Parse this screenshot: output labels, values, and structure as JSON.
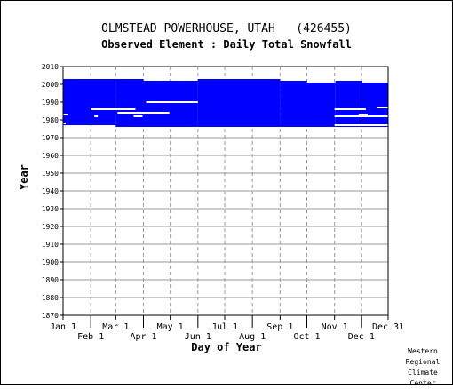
{
  "chart_data": {
    "type": "scatter",
    "title": "OLMSTEAD POWERHOUSE, UTAH   (426455)",
    "subtitle": "Observed Element : Daily Total Snowfall",
    "xlabel": "Day of Year",
    "ylabel": "Year",
    "ylim": [
      1870,
      2010
    ],
    "yticks": [
      2010,
      2000,
      1990,
      1980,
      1970,
      1960,
      1950,
      1940,
      1930,
      1920,
      1910,
      1900,
      1890,
      1880,
      1870
    ],
    "xticks_upper": [
      "Jan 1",
      "Mar 1",
      "May 1",
      "Jul 1",
      "Sep 1",
      "Nov 1",
      "Dec 31"
    ],
    "xticks_lower": [
      "Feb 1",
      "Apr 1",
      "Jun 1",
      "Aug 1",
      "Oct 1",
      "Dec 1"
    ],
    "grid": true,
    "series_color": "#0000ff",
    "coverage_blocks": [
      {
        "day_start": 1,
        "day_end": 59,
        "year_start": 1977,
        "year_end": 2003
      },
      {
        "day_start": 60,
        "day_end": 90,
        "year_start": 1976,
        "year_end": 2003
      },
      {
        "day_start": 91,
        "day_end": 151,
        "year_start": 1976,
        "year_end": 2002
      },
      {
        "day_start": 152,
        "day_end": 243,
        "year_start": 1976,
        "year_end": 2003
      },
      {
        "day_start": 244,
        "day_end": 273,
        "year_start": 1976,
        "year_end": 2002
      },
      {
        "day_start": 274,
        "day_end": 305,
        "year_start": 1976,
        "year_end": 2001
      },
      {
        "day_start": 306,
        "day_end": 335,
        "year_start": 1976,
        "year_end": 2002
      },
      {
        "day_start": 336,
        "day_end": 365,
        "year_start": 1976,
        "year_end": 2001
      }
    ],
    "gap_lines": [
      {
        "day_start": 1,
        "day_end": 6,
        "year": 1983
      },
      {
        "day_start": 1,
        "day_end": 4,
        "year": 1978
      },
      {
        "day_start": 32,
        "day_end": 82,
        "year": 1986
      },
      {
        "day_start": 36,
        "day_end": 40,
        "year": 1982
      },
      {
        "day_start": 62,
        "day_end": 120,
        "year": 1984
      },
      {
        "day_start": 94,
        "day_end": 152,
        "year": 1990
      },
      {
        "day_start": 80,
        "day_end": 90,
        "year": 1982
      },
      {
        "day_start": 305,
        "day_end": 340,
        "year": 1986
      },
      {
        "day_start": 305,
        "day_end": 365,
        "year": 1982
      },
      {
        "day_start": 305,
        "day_end": 365,
        "year": 1977
      },
      {
        "day_start": 332,
        "day_end": 342,
        "year": 1983
      },
      {
        "day_start": 352,
        "day_end": 365,
        "year": 1987
      }
    ]
  },
  "credit": "Western\nRegional\nClimate\nCenter"
}
